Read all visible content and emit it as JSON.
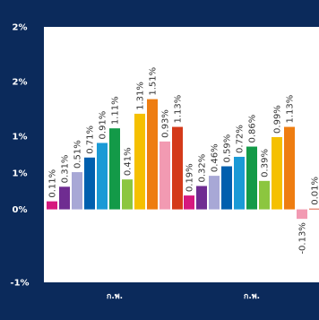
{
  "colors": {
    "frame": "#0b2a5b",
    "plot_background": "#ffffff",
    "label_text": "#333333"
  },
  "chart_data": {
    "type": "bar",
    "title": "",
    "xlabel": "",
    "ylabel": "",
    "ylim": [
      -1,
      2.5
    ],
    "y_ticks": [
      {
        "value": 2.5,
        "label": "2%"
      },
      {
        "value": 1.75,
        "label": "2%"
      },
      {
        "value": 1.0,
        "label": "1%"
      },
      {
        "value": 0.5,
        "label": "1%"
      },
      {
        "value": 0.0,
        "label": "0%"
      },
      {
        "value": -1.0,
        "label": "-1%"
      }
    ],
    "grid": false,
    "legend": "none",
    "categories": [
      "ก.พ.",
      "ก.พ."
    ],
    "groups": [
      {
        "category": "ก.พ.",
        "bars": [
          {
            "value": 0.11,
            "label": "0.11%",
            "color": "#d6197f"
          },
          {
            "value": 0.31,
            "label": "0.31%",
            "color": "#6f2c91"
          },
          {
            "value": 0.51,
            "label": "0.51%",
            "color": "#a8a8d6"
          },
          {
            "value": 0.71,
            "label": "0.71%",
            "color": "#005fae"
          },
          {
            "value": 0.91,
            "label": "0.91%",
            "color": "#1a9ad6"
          },
          {
            "value": 1.11,
            "label": "1.11%",
            "color": "#139a48"
          },
          {
            "value": 0.41,
            "label": "0.41%",
            "color": "#8cc63f"
          },
          {
            "value": 1.31,
            "label": "1.31%",
            "color": "#f5c000"
          },
          {
            "value": 1.51,
            "label": "1.51%",
            "color": "#ee7d11"
          },
          {
            "value": 0.93,
            "label": "0.93%",
            "color": "#f29ab2"
          },
          {
            "value": 1.13,
            "label": "1.13%",
            "color": "#d43a1a"
          }
        ]
      },
      {
        "category": "ก.พ.",
        "bars": [
          {
            "value": 0.19,
            "label": "0.19%",
            "color": "#d6197f"
          },
          {
            "value": 0.32,
            "label": "0.32%",
            "color": "#6f2c91"
          },
          {
            "value": 0.46,
            "label": "0.46%",
            "color": "#a8a8d6"
          },
          {
            "value": 0.59,
            "label": "0.59%",
            "color": "#005fae"
          },
          {
            "value": 0.72,
            "label": "0.72%",
            "color": "#1a9ad6"
          },
          {
            "value": 0.86,
            "label": "0.86%",
            "color": "#139a48"
          },
          {
            "value": 0.39,
            "label": "0.39%",
            "color": "#8cc63f"
          },
          {
            "value": 0.99,
            "label": "0.99%",
            "color": "#f5c000"
          },
          {
            "value": 1.13,
            "label": "1.13%",
            "color": "#ee7d11"
          },
          {
            "value": -0.13,
            "label": "-0.13%",
            "color": "#f29ab2"
          },
          {
            "value": 0.01,
            "label": "0.01%",
            "color": "#d43a1a"
          }
        ]
      }
    ]
  }
}
